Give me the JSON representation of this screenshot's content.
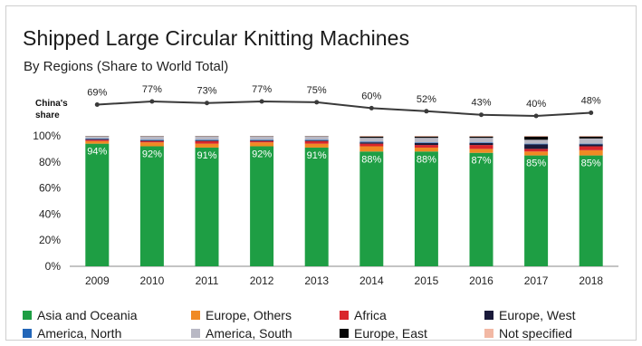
{
  "title": "Shipped Large Circular Knitting Machines",
  "subtitle": "By Regions (Share to World Total)",
  "share_label": "China's share",
  "chart_data": [
    {
      "type": "line",
      "name": "China's share",
      "x": [
        "2009",
        "2010",
        "2011",
        "2012",
        "2013",
        "2014",
        "2015",
        "2016",
        "2017",
        "2018"
      ],
      "values": [
        69,
        77,
        73,
        77,
        75,
        60,
        52,
        43,
        40,
        48
      ],
      "value_labels": [
        "69%",
        "77%",
        "73%",
        "77%",
        "75%",
        "60%",
        "52%",
        "43%",
        "40%",
        "48%"
      ],
      "color": "#3a3a3a"
    },
    {
      "type": "bar",
      "stacked": true,
      "categories": [
        "2009",
        "2010",
        "2011",
        "2012",
        "2013",
        "2014",
        "2015",
        "2016",
        "2017",
        "2018"
      ],
      "ylim": [
        0,
        100
      ],
      "yticks": [
        "0%",
        "20%",
        "40%",
        "60%",
        "80%",
        "100%"
      ],
      "grid": false,
      "legend_position": "bottom",
      "series": [
        {
          "name": "Asia and Oceania",
          "color": "#1e9e44",
          "values": [
            94,
            92,
            91,
            92,
            91,
            88,
            88,
            87,
            85,
            85
          ],
          "labels": [
            "94%",
            "92%",
            "91%",
            "92%",
            "91%",
            "88%",
            "88%",
            "87%",
            "85%",
            "85%"
          ]
        },
        {
          "name": "Europe, Others",
          "color": "#f08a24",
          "values": [
            2,
            3,
            3,
            3,
            3,
            4,
            3,
            3,
            3,
            4
          ]
        },
        {
          "name": "Africa",
          "color": "#d9262b",
          "values": [
            1,
            1,
            2,
            1,
            2,
            2,
            2,
            3,
            2,
            3
          ]
        },
        {
          "name": "Europe, West",
          "color": "#1a1a3a",
          "values": [
            0.5,
            0.5,
            0.5,
            0.5,
            0.5,
            1,
            1.5,
            1.5,
            3.5,
            1.5
          ]
        },
        {
          "name": "America, North",
          "color": "#2266b8",
          "values": [
            0.5,
            0.5,
            0.5,
            0.5,
            0.5,
            0.5,
            0.5,
            0.5,
            0.5,
            0.5
          ]
        },
        {
          "name": "America, South",
          "color": "#b8b8c4",
          "values": [
            1.5,
            2.5,
            2.5,
            2.5,
            2.5,
            3,
            3.5,
            3.5,
            3,
            4
          ]
        },
        {
          "name": "Europe, East",
          "color": "#050505",
          "values": [
            0.3,
            0.3,
            0.3,
            0.3,
            0.3,
            1,
            1,
            1,
            2.5,
            1.5
          ]
        },
        {
          "name": "Not specified",
          "color": "#f2b8a4",
          "values": [
            0.2,
            0.2,
            0.2,
            0.2,
            0.2,
            0.5,
            0.5,
            0.5,
            0.5,
            0.5
          ]
        }
      ]
    }
  ],
  "legend": [
    {
      "label": "Asia and Oceania",
      "color": "#1e9e44"
    },
    {
      "label": "Europe, Others",
      "color": "#f08a24"
    },
    {
      "label": "Africa",
      "color": "#d9262b"
    },
    {
      "label": "Europe, West",
      "color": "#1a1a3a"
    },
    {
      "label": "America, North",
      "color": "#2266b8"
    },
    {
      "label": "America, South",
      "color": "#b8b8c4"
    },
    {
      "label": "Europe, East",
      "color": "#050505"
    },
    {
      "label": "Not specified",
      "color": "#f2b8a4"
    }
  ]
}
